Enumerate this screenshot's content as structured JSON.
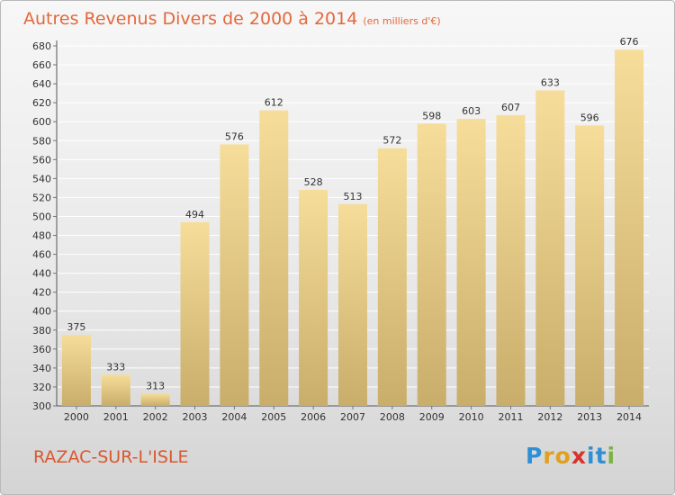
{
  "header": {
    "title": "Autres Revenus Divers de 2000 à 2014",
    "subtitle": "(en milliers d'€)"
  },
  "footer": {
    "commune": "RAZAC-SUR-L'ISLE",
    "logo": [
      "P",
      "r",
      "o",
      "x",
      "i",
      "t",
      "i"
    ],
    "logo_colors": [
      "#2f8fd5",
      "#e0a020",
      "#e0a020",
      "#d8322c",
      "#2f8fd5",
      "#2f8fd5",
      "#7cb342"
    ]
  },
  "chart_data": {
    "type": "bar",
    "categories": [
      "2000",
      "2001",
      "2002",
      "2003",
      "2004",
      "2005",
      "2006",
      "2007",
      "2008",
      "2009",
      "2010",
      "2011",
      "2012",
      "2013",
      "2014"
    ],
    "values": [
      375,
      333,
      313,
      494,
      576,
      612,
      528,
      513,
      572,
      598,
      603,
      607,
      633,
      596,
      676
    ],
    "data_labels": [
      "375",
      "333",
      "313",
      "494",
      "576",
      "612",
      "528",
      "513",
      "572",
      "598",
      "603",
      "607",
      "633",
      "596",
      "676"
    ],
    "yticks": [
      "300",
      "320",
      "340",
      "360",
      "380",
      "400",
      "420",
      "440",
      "460",
      "480",
      "500",
      "520",
      "540",
      "560",
      "580",
      "600",
      "620",
      "640",
      "660",
      "680"
    ],
    "ylim": [
      300,
      680
    ],
    "grid": true,
    "bar_color_light": "#f6dd9a",
    "bar_color_dark": "#c9ad6a"
  }
}
